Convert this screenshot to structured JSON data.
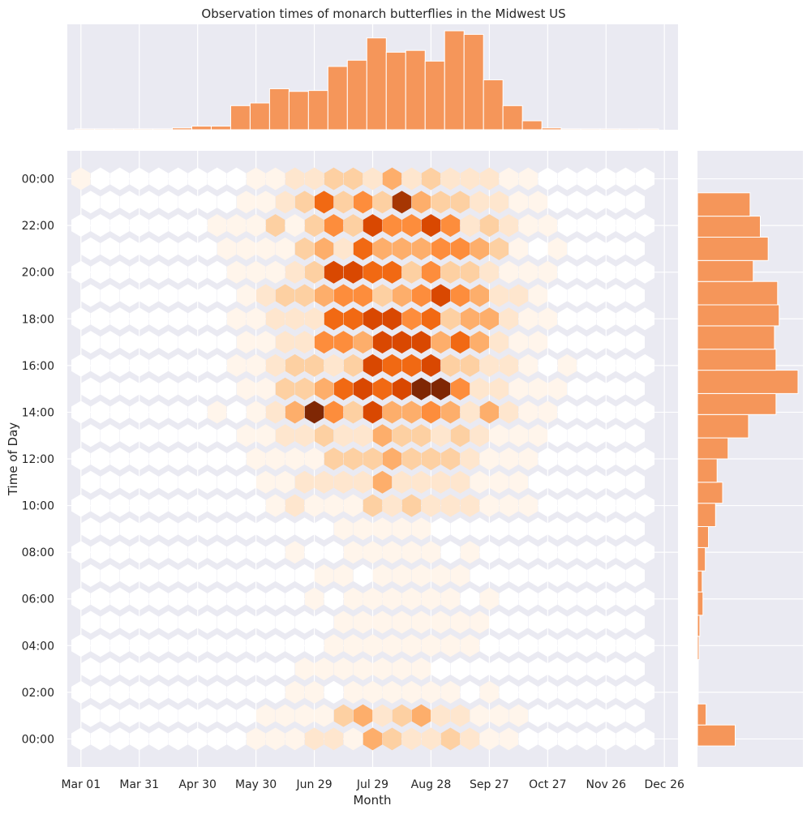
{
  "chart_data": {
    "type": "heatmap",
    "subtype": "hexbin joint plot with marginal histograms",
    "title": "Observation times of monarch butterflies in the Midwest US",
    "xlabel": "Month",
    "ylabel": "Time of Day",
    "x_ticks": [
      "Mar 01",
      "Mar 31",
      "Apr 30",
      "May 30",
      "Jun 29",
      "Jul 29",
      "Aug 28",
      "Sep 27",
      "Oct 27",
      "Nov 26",
      "Dec 26"
    ],
    "y_ticks": [
      "00:00",
      "02:00",
      "04:00",
      "06:00",
      "08:00",
      "10:00",
      "12:00",
      "14:00",
      "16:00",
      "18:00",
      "20:00",
      "22:00",
      "00:00"
    ],
    "x_range_days_since_mar01": [
      -7,
      307
    ],
    "y_range_hours": [
      -1.2,
      25.2
    ],
    "colormap": [
      "#ffffff",
      "#fff5eb",
      "#fee6ce",
      "#fdd0a2",
      "#fdae6b",
      "#fd8d3c",
      "#f16913",
      "#d94801",
      "#a63603",
      "#7f2704",
      "#000000"
    ],
    "histogram_color": "#f5965a",
    "background": "#eaeaf2",
    "grid": true,
    "hexbins": [
      {
        "day": 0,
        "hour": 0,
        "level": 0
      },
      {
        "day": 0,
        "hour": 24,
        "level": 1
      },
      {
        "day": 0,
        "hour": 22,
        "level": 0
      },
      {
        "day": 0,
        "hour": 20,
        "level": 0
      },
      {
        "day": 0,
        "hour": 18,
        "level": 0
      },
      {
        "day": 0,
        "hour": 16,
        "level": 0
      },
      {
        "day": 0,
        "hour": 14,
        "level": 0
      },
      {
        "day": 0,
        "hour": 12,
        "level": 0
      },
      {
        "day": 0,
        "hour": 10,
        "level": 0
      },
      {
        "day": 0,
        "hour": 8,
        "level": 0
      },
      {
        "day": 0,
        "hour": 6,
        "level": 0
      },
      {
        "day": 0,
        "hour": 4,
        "level": 0
      },
      {
        "day": 0,
        "hour": 2,
        "level": 0
      },
      {
        "day": 293,
        "hour": 0,
        "level": 0
      },
      {
        "day": 293,
        "hour": 24,
        "level": 0
      },
      {
        "day": 293,
        "hour": 22,
        "level": 0
      },
      {
        "day": 293,
        "hour": 20,
        "level": 2
      },
      {
        "day": 293,
        "hour": 18,
        "level": 0
      },
      {
        "day": 293,
        "hour": 16,
        "level": 0
      },
      {
        "day": 293,
        "hour": 14,
        "level": 0
      },
      {
        "day": 293,
        "hour": 12,
        "level": 0
      },
      {
        "day": 293,
        "hour": 10,
        "level": 0
      },
      {
        "day": 293,
        "hour": 8,
        "level": 0
      },
      {
        "day": 293,
        "hour": 6,
        "level": 0
      },
      {
        "day": 293,
        "hour": 4,
        "level": 0
      },
      {
        "day": 293,
        "hour": 2,
        "level": 0
      },
      {
        "day": 75,
        "hour": 0,
        "level": 2
      },
      {
        "day": 85,
        "hour": 0,
        "level": 2
      },
      {
        "day": 95,
        "hour": 0,
        "level": 1
      },
      {
        "day": 105,
        "hour": 0,
        "level": 1
      },
      {
        "day": 115,
        "hour": 0,
        "level": 4
      },
      {
        "day": 125,
        "hour": 0,
        "level": 3
      },
      {
        "day": 135,
        "hour": 0,
        "level": 5
      },
      {
        "day": 145,
        "hour": 0,
        "level": 3
      },
      {
        "day": 155,
        "hour": 0,
        "level": 3
      },
      {
        "day": 165,
        "hour": 0,
        "level": 2
      },
      {
        "day": 175,
        "hour": 0,
        "level": 2
      },
      {
        "day": 185,
        "hour": 0,
        "level": 1
      },
      {
        "day": 195,
        "hour": 0,
        "level": 1
      },
      {
        "day": 205,
        "hour": 0,
        "level": 1
      },
      {
        "day": 140,
        "hour": 17,
        "level": 8
      },
      {
        "day": 150,
        "hour": 17,
        "level": 7
      },
      {
        "day": 160,
        "hour": 17,
        "level": 6
      },
      {
        "day": 170,
        "hour": 17,
        "level": 8
      },
      {
        "day": 180,
        "hour": 17,
        "level": 6
      },
      {
        "day": 135,
        "hour": 15,
        "level": 6
      },
      {
        "day": 145,
        "hour": 15,
        "level": 7
      },
      {
        "day": 155,
        "hour": 15,
        "level": 6
      },
      {
        "day": 165,
        "hour": 15,
        "level": 7
      },
      {
        "day": 175,
        "hour": 15,
        "level": 9
      },
      {
        "day": 185,
        "hour": 15,
        "level": 9
      },
      {
        "day": 120,
        "hour": 14,
        "level": 9
      },
      {
        "day": 140,
        "hour": 13,
        "level": 8
      },
      {
        "day": 130,
        "hour": 13,
        "level": 7
      },
      {
        "day": 175,
        "hour": 22,
        "level": 10
      },
      {
        "day": 165,
        "hour": 23,
        "level": 8
      },
      {
        "day": 180,
        "hour": 21,
        "level": 8
      },
      {
        "day": 170,
        "hour": 21,
        "level": 8
      },
      {
        "day": 165,
        "hour": 18,
        "level": 8
      }
    ],
    "x_histogram": [
      {
        "day": -3,
        "count": 1
      },
      {
        "day": 7,
        "count": 1
      },
      {
        "day": 17,
        "count": 1
      },
      {
        "day": 27,
        "count": 1
      },
      {
        "day": 37,
        "count": 1
      },
      {
        "day": 47,
        "count": 2
      },
      {
        "day": 57,
        "count": 4
      },
      {
        "day": 67,
        "count": 4
      },
      {
        "day": 77,
        "count": 27
      },
      {
        "day": 87,
        "count": 30
      },
      {
        "day": 97,
        "count": 46
      },
      {
        "day": 107,
        "count": 43
      },
      {
        "day": 117,
        "count": 44
      },
      {
        "day": 127,
        "count": 71
      },
      {
        "day": 137,
        "count": 78
      },
      {
        "day": 147,
        "count": 103
      },
      {
        "day": 157,
        "count": 87
      },
      {
        "day": 167,
        "count": 89
      },
      {
        "day": 177,
        "count": 77
      },
      {
        "day": 187,
        "count": 111
      },
      {
        "day": 197,
        "count": 107
      },
      {
        "day": 207,
        "count": 56
      },
      {
        "day": 217,
        "count": 27
      },
      {
        "day": 227,
        "count": 10
      },
      {
        "day": 237,
        "count": 2
      },
      {
        "day": 247,
        "count": 1
      },
      {
        "day": 257,
        "count": 1
      },
      {
        "day": 267,
        "count": 1
      },
      {
        "day": 277,
        "count": 1
      },
      {
        "day": 287,
        "count": 1
      }
    ],
    "y_histogram": [
      {
        "hour_lo": -0.3,
        "hour_hi": 0.6,
        "count": 48
      },
      {
        "hour_lo": 0.6,
        "hour_hi": 1.5,
        "count": 11
      },
      {
        "hour_lo": 1.5,
        "hour_hi": 2.5,
        "count": 1
      },
      {
        "hour_lo": 2.5,
        "hour_hi": 3.4,
        "count": 1
      },
      {
        "hour_lo": 3.4,
        "hour_hi": 4.4,
        "count": 2
      },
      {
        "hour_lo": 4.4,
        "hour_hi": 5.3,
        "count": 3
      },
      {
        "hour_lo": 5.3,
        "hour_hi": 6.3,
        "count": 7
      },
      {
        "hour_lo": 6.3,
        "hour_hi": 7.2,
        "count": 6
      },
      {
        "hour_lo": 7.2,
        "hour_hi": 8.2,
        "count": 10
      },
      {
        "hour_lo": 8.2,
        "hour_hi": 9.1,
        "count": 14
      },
      {
        "hour_lo": 9.1,
        "hour_hi": 10.1,
        "count": 23
      },
      {
        "hour_lo": 10.1,
        "hour_hi": 11.0,
        "count": 32
      },
      {
        "hour_lo": 11.0,
        "hour_hi": 12.0,
        "count": 25
      },
      {
        "hour_lo": 12.0,
        "hour_hi": 12.9,
        "count": 39
      },
      {
        "hour_lo": 12.9,
        "hour_hi": 13.9,
        "count": 65
      },
      {
        "hour_lo": 13.9,
        "hour_hi": 14.8,
        "count": 100
      },
      {
        "hour_lo": 14.8,
        "hour_hi": 15.8,
        "count": 128
      },
      {
        "hour_lo": 15.8,
        "hour_hi": 16.7,
        "count": 100
      },
      {
        "hour_lo": 16.7,
        "hour_hi": 17.7,
        "count": 98
      },
      {
        "hour_lo": 17.7,
        "hour_hi": 18.6,
        "count": 104
      },
      {
        "hour_lo": 18.6,
        "hour_hi": 19.6,
        "count": 102
      },
      {
        "hour_lo": 19.6,
        "hour_hi": 20.5,
        "count": 71
      },
      {
        "hour_lo": 20.5,
        "hour_hi": 21.5,
        "count": 90
      },
      {
        "hour_lo": 21.5,
        "hour_hi": 22.4,
        "count": 80
      },
      {
        "hour_lo": 22.4,
        "hour_hi": 23.4,
        "count": 67
      }
    ]
  }
}
